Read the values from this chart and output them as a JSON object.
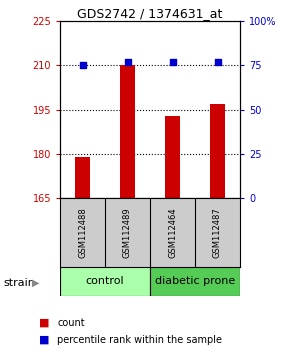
{
  "title": "GDS2742 / 1374631_at",
  "samples": [
    "GSM112488",
    "GSM112489",
    "GSM112464",
    "GSM112487"
  ],
  "counts": [
    179,
    210,
    193,
    197
  ],
  "percentiles": [
    75,
    77,
    77,
    77
  ],
  "ylim_left": [
    165,
    225
  ],
  "ylim_right": [
    0,
    100
  ],
  "yticks_left": [
    165,
    180,
    195,
    210,
    225
  ],
  "yticks_right": [
    0,
    25,
    50,
    75,
    100
  ],
  "ytick_labels_right": [
    "0",
    "25",
    "50",
    "75",
    "100%"
  ],
  "hgrid_at": [
    180,
    195,
    210
  ],
  "bar_color": "#CC0000",
  "dot_color": "#0000CC",
  "bg_color": "#ffffff",
  "sample_box_color": "#cccccc",
  "control_color": "#aaffaa",
  "diabetic_color": "#55cc55",
  "left_tick_color": "#cc0000",
  "right_tick_color": "#0000cc",
  "bar_width": 0.35,
  "dot_size": 18,
  "title_fontsize": 9,
  "tick_fontsize": 7,
  "sample_fontsize": 6,
  "group_fontsize": 8,
  "legend_fontsize": 7,
  "strain_fontsize": 8
}
